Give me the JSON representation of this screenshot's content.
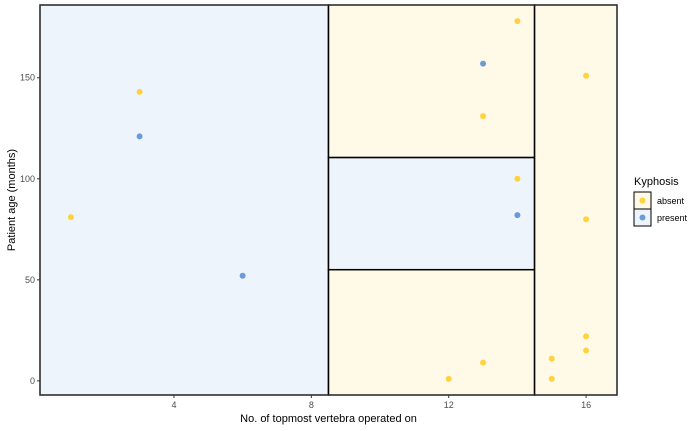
{
  "chart_data": {
    "type": "scatter",
    "title": "",
    "xlabel": "No. of topmost vertebra operated on",
    "ylabel": "Patient age (months)",
    "xlim": [
      0.1,
      16.9
    ],
    "ylim": [
      -7,
      186
    ],
    "xticks": [
      4,
      8,
      12,
      16
    ],
    "yticks": [
      0,
      50,
      100,
      150
    ],
    "grid": false,
    "legend": {
      "title": "Kyphosis",
      "position": "right",
      "entries": [
        {
          "label": "absent",
          "color": "#FFD23F",
          "fill": "#FFF9E8"
        },
        {
          "label": "present",
          "color": "#6A9BD8",
          "fill": "#EEF4FC"
        }
      ]
    },
    "regions": [
      {
        "x": [
          0.1,
          8.5
        ],
        "y": [
          -7,
          186
        ],
        "class": "present"
      },
      {
        "x": [
          8.5,
          14.5
        ],
        "y": [
          110.5,
          186
        ],
        "class": "absent"
      },
      {
        "x": [
          8.5,
          14.5
        ],
        "y": [
          55,
          110.5
        ],
        "class": "present"
      },
      {
        "x": [
          8.5,
          14.5
        ],
        "y": [
          -7,
          55
        ],
        "class": "absent"
      },
      {
        "x": [
          14.5,
          16.9
        ],
        "y": [
          -7,
          186
        ],
        "class": "absent"
      }
    ],
    "series": [
      {
        "name": "absent",
        "color": "#FFD23F",
        "points": [
          {
            "x": 1,
            "y": 81
          },
          {
            "x": 3,
            "y": 143
          },
          {
            "x": 12,
            "y": 1
          },
          {
            "x": 13,
            "y": 9
          },
          {
            "x": 13,
            "y": 131
          },
          {
            "x": 14,
            "y": 100
          },
          {
            "x": 14,
            "y": 178
          },
          {
            "x": 15,
            "y": 1
          },
          {
            "x": 15,
            "y": 11
          },
          {
            "x": 16,
            "y": 15
          },
          {
            "x": 16,
            "y": 22
          },
          {
            "x": 16,
            "y": 80
          },
          {
            "x": 16,
            "y": 151
          }
        ]
      },
      {
        "name": "present",
        "color": "#6A9BD8",
        "points": [
          {
            "x": 3,
            "y": 121
          },
          {
            "x": 6,
            "y": 52
          },
          {
            "x": 13,
            "y": 157
          },
          {
            "x": 14,
            "y": 82
          }
        ]
      }
    ]
  }
}
